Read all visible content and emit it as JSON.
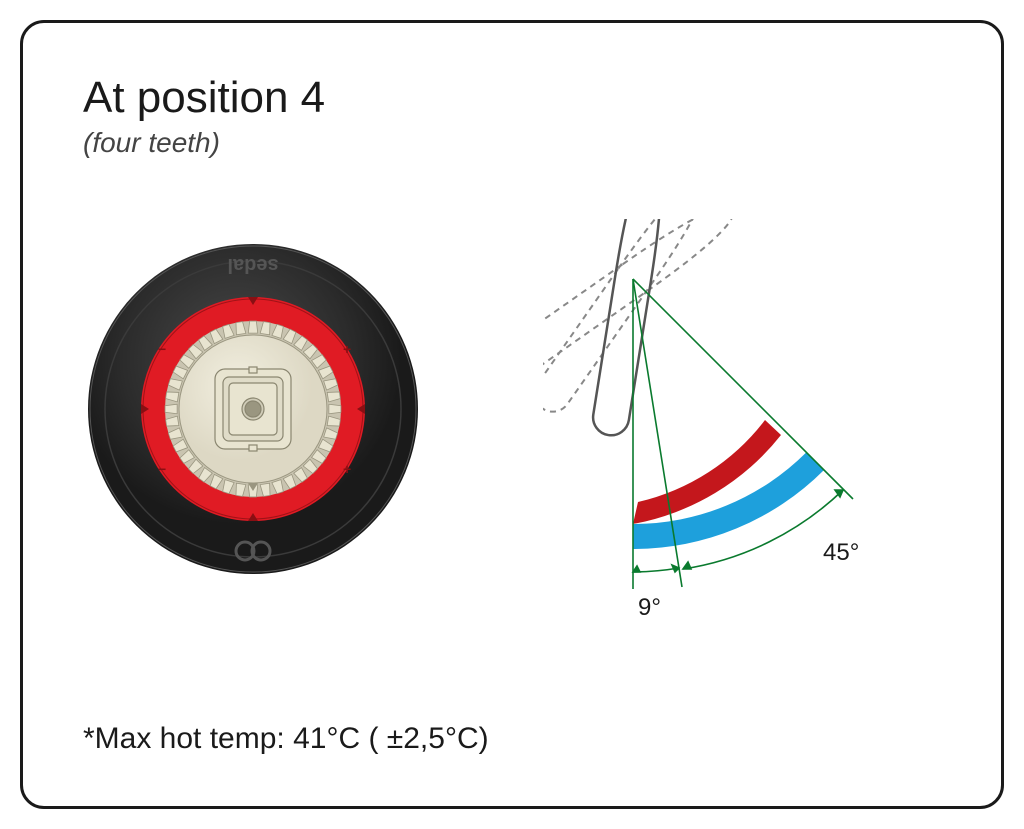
{
  "header": {
    "title": "At position 4",
    "subtitle": "(four teeth)"
  },
  "cartridge": {
    "outer_color": "#2b2b2b",
    "ring_color": "#e01b24",
    "center_color": "#e8e4d0",
    "center_stroke": "#9a9680",
    "brand_text": "sedal",
    "tooth_count": 40,
    "diameter": 340,
    "arrow_count": 4
  },
  "angle_diagram": {
    "handle_stroke": "#666666",
    "handle_dash_stroke": "#888888",
    "arc_red": "#c4171c",
    "arc_blue": "#1ea0dc",
    "angle_line_color": "#0a7a2e",
    "inner_angle_deg": 9,
    "outer_angle_deg": 45,
    "inner_label": "9°",
    "outer_label": "45°"
  },
  "footnote": "*Max hot temp: 41°C ( ±2,5°C)",
  "frame": {
    "border_color": "#1a1a1a",
    "border_radius": 24,
    "background": "#ffffff"
  }
}
